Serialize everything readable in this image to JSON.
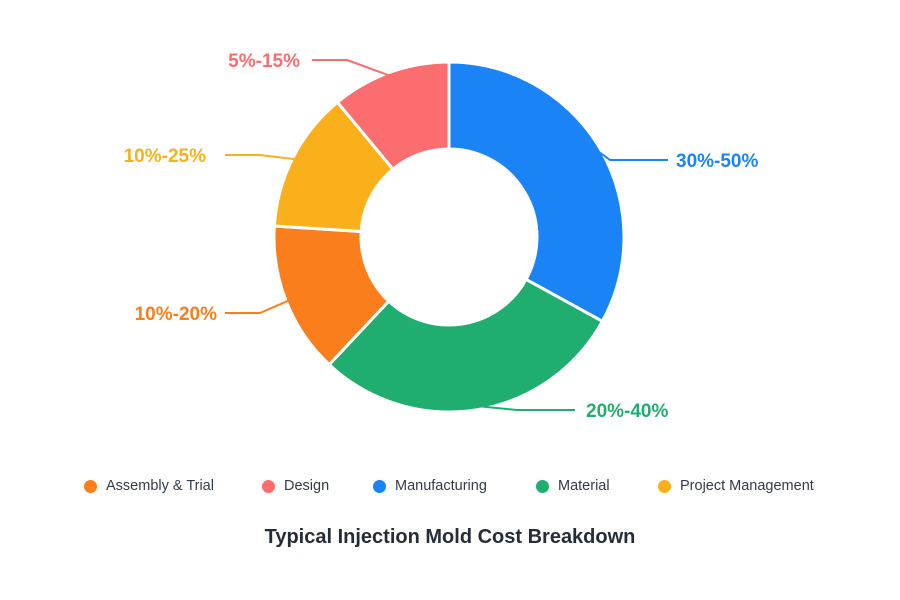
{
  "chart_data": {
    "type": "pie",
    "variant": "donut",
    "title": "Typical Injection Mold Cost Breakdown",
    "legend_position": "bottom",
    "slices": [
      {
        "name": "Manufacturing",
        "label": "30%-50%",
        "value": 33,
        "color": "#1a84f7"
      },
      {
        "name": "Material",
        "label": "20%-40%",
        "value": 29,
        "color": "#1fae6f"
      },
      {
        "name": "Assembly & Trial",
        "label": "10%-20%",
        "value": 14,
        "color": "#fa7f1c"
      },
      {
        "name": "Project Management",
        "label": "10%-25%",
        "value": 13,
        "color": "#fab01b"
      },
      {
        "name": "Design",
        "label": "5%-15%",
        "value": 11,
        "color": "#fb6d6f"
      }
    ],
    "legend": [
      {
        "name": "Assembly & Trial",
        "color": "#fa7f1c"
      },
      {
        "name": "Design",
        "color": "#fb6d6f"
      },
      {
        "name": "Manufacturing",
        "color": "#1a84f7"
      },
      {
        "name": "Material",
        "color": "#1fae6f"
      },
      {
        "name": "Project Management",
        "color": "#fab01b"
      }
    ]
  }
}
